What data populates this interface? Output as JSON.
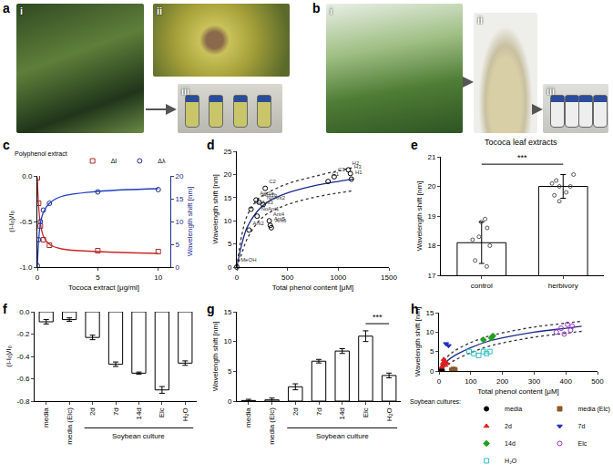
{
  "photos": [
    {
      "panel": "a",
      "labels": [
        "i",
        "ii",
        "iii"
      ]
    },
    {
      "panel": "b",
      "labels": [
        "i",
        "ii",
        "iii"
      ]
    }
  ],
  "chart_data": [
    {
      "panel": "c",
      "type": "scatter",
      "x_label": "Tococa extract [μg/ml]",
      "y_label": "(I-I₀)/I₀",
      "y2_label": "Wavelength shift [nm]",
      "legend": "top right",
      "legend_title": "Polyphenol extract",
      "xlim": [
        0,
        11
      ],
      "xticks": [
        0,
        5,
        10
      ],
      "ylim": [
        -1,
        0
      ],
      "yticks": [
        {
          "value": -1,
          "label": "-1.0"
        },
        {
          "value": -0.5,
          "label": "-0.5"
        },
        {
          "value": 0,
          "label": "0.0"
        }
      ],
      "y2lim": [
        0,
        20
      ],
      "y2ticks": [
        0,
        5,
        10,
        15,
        20
      ],
      "series": [
        {
          "name": "ΔI",
          "color": "#a52a2a",
          "marker": "square-open",
          "x": [
            0,
            0.1,
            0.25,
            0.5,
            1,
            5,
            10
          ],
          "values": [
            -0.02,
            -0.3,
            -0.55,
            -0.7,
            -0.76,
            -0.82,
            -0.83
          ]
        },
        {
          "type": "line",
          "color": "#c62828",
          "line_style": "solid",
          "x": [
            0,
            0.1,
            0.25,
            0.5,
            1,
            2,
            5,
            10
          ],
          "values": [
            -0.02,
            -0.32,
            -0.52,
            -0.66,
            -0.75,
            -0.8,
            -0.83,
            -0.85
          ]
        },
        {
          "name": "Δλ",
          "color": "#1a2a8a",
          "marker": "circle-open",
          "axis": "y2",
          "x": [
            0,
            0.1,
            0.25,
            0.5,
            1,
            5,
            10
          ],
          "values": [
            0.3,
            6,
            10,
            12.5,
            14,
            16.5,
            17
          ]
        },
        {
          "type": "line",
          "axis": "y2",
          "color": "#1f3fbf",
          "line_style": "solid",
          "x": [
            0,
            0.1,
            0.25,
            0.5,
            1,
            2,
            5,
            10
          ],
          "values": [
            0,
            5.5,
            9.5,
            12,
            14,
            15.5,
            16.6,
            17.2
          ]
        }
      ]
    },
    {
      "panel": "d",
      "type": "scatter",
      "x_label": "Total phenol content [μM]",
      "y_label": "Wavelength shift [nm]",
      "xlim": [
        0,
        1500
      ],
      "xticks": [
        0,
        500,
        1000,
        1500
      ],
      "ylim": [
        0,
        25
      ],
      "yticks": [
        0,
        5,
        10,
        15,
        20,
        25
      ],
      "series": [
        {
          "type": "line",
          "color": "#1a2a8a",
          "line_style": "solid",
          "x": [
            0,
            50,
            100,
            200,
            300,
            500,
            750,
            1000,
            1150
          ],
          "values": [
            0,
            5,
            8.5,
            12,
            14,
            16,
            17.5,
            18.5,
            19
          ]
        },
        {
          "type": "line",
          "color": "#333333",
          "line_style": "dot",
          "x": [
            0,
            50,
            100,
            200,
            300,
            500,
            750,
            1000,
            1150
          ],
          "values": [
            0,
            7,
            11,
            14.5,
            16,
            18,
            19.5,
            20.8,
            21.5
          ]
        },
        {
          "type": "line",
          "color": "#333333",
          "line_style": "dot",
          "x": [
            0,
            50,
            100,
            200,
            300,
            500,
            750,
            1000,
            1150
          ],
          "values": [
            0,
            3,
            6,
            9.5,
            11.5,
            13.5,
            15,
            16,
            16.5
          ]
        },
        {
          "color": "#000000",
          "marker": "circle-open",
          "x": [
            0,
            120,
            140,
            190,
            220,
            200,
            260,
            280,
            320,
            330,
            340,
            900,
            960,
            1100,
            1120,
            1130
          ],
          "values": [
            0,
            8,
            12.5,
            14.5,
            14,
            11,
            13.5,
            17,
            10,
            9,
            8.5,
            18.5,
            19.5,
            21,
            20.2,
            19
          ],
          "point_labels": [
            "MeOH",
            "Ant2",
            "NoAnt3",
            "Ant1a",
            "Ant1b",
            "NoAnt1",
            "NoAnt2",
            "C2",
            "Ant4",
            "Ant5",
            "Ant6",
            "C1",
            "C3",
            "H2",
            "H3",
            "H1"
          ]
        }
      ]
    },
    {
      "panel": "e",
      "type": "bar",
      "title": "Tococa leaf extracts",
      "y_label": "Wavelength shift [nm]",
      "categories": [
        "control",
        "herbivory"
      ],
      "values": [
        18.1,
        20.0
      ],
      "error": [
        0.7,
        0.4
      ],
      "points": [
        [
          17.3,
          17.5,
          18.0,
          18.2,
          18.3,
          18.6,
          18.8,
          18.9
        ],
        [
          19.5,
          19.7,
          19.8,
          20.0,
          20.0,
          20.1,
          20.2,
          20.4
        ]
      ],
      "color": "#ffffff",
      "ylim": [
        17,
        21
      ],
      "yticks": [
        17,
        18,
        19,
        20,
        21
      ],
      "annotations": [
        {
          "text": "***",
          "from": 0,
          "to": 1,
          "y": 20.75
        }
      ]
    },
    {
      "panel": "f",
      "type": "bar",
      "y_label": "(I-I₀)/I₀",
      "categories": [
        "media",
        "media (Elc)",
        "2d",
        "7d",
        "14d",
        "Elc",
        "H₂O"
      ],
      "values": [
        -0.09,
        -0.07,
        -0.23,
        -0.47,
        -0.55,
        -0.7,
        -0.46
      ],
      "error": [
        0.02,
        0.015,
        0.02,
        0.02,
        0.01,
        0.03,
        0.02
      ],
      "color": "#ffffff",
      "ylim": [
        -0.8,
        0
      ],
      "yticks": [
        {
          "value": -0.8,
          "label": "-0.8"
        },
        {
          "value": -0.6,
          "label": "-0.6"
        },
        {
          "value": -0.4,
          "label": "-0.4"
        },
        {
          "value": -0.2,
          "label": "-0.2"
        },
        {
          "value": 0,
          "label": "0.0"
        }
      ],
      "group_labels": [
        {
          "text": "Soybean culture",
          "from": 2,
          "to": 6
        }
      ]
    },
    {
      "panel": "g",
      "type": "bar",
      "y_label": "Wavelength shift [nm]",
      "categories": [
        "media",
        "media (Elc)",
        "2d",
        "7d",
        "14d",
        "Elc",
        "H₂O"
      ],
      "values": [
        0.1,
        0.2,
        2.4,
        6.7,
        8.4,
        10.9,
        4.3
      ],
      "error": [
        0.2,
        0.3,
        0.5,
        0.3,
        0.4,
        0.9,
        0.4
      ],
      "color": "#ffffff",
      "ylim": [
        0,
        15
      ],
      "yticks": [
        0,
        5,
        10,
        15
      ],
      "annotations": [
        {
          "text": "***",
          "from": 5,
          "to": 6,
          "y": 13
        }
      ],
      "group_labels": [
        {
          "text": "Soybean culture",
          "from": 2,
          "to": 6
        }
      ]
    },
    {
      "panel": "h",
      "type": "scatter",
      "x_label": "Total phenol content [μM]",
      "y_label": "Wavelength shift [nm]",
      "xlim": [
        0,
        500
      ],
      "xticks": [
        0,
        100,
        200,
        300,
        400,
        500
      ],
      "ylim": [
        0,
        15
      ],
      "yticks": [
        0,
        5,
        10,
        15
      ],
      "legend": "bottom left",
      "legend_title": "Soybean cultures:",
      "series": [
        {
          "type": "line",
          "color": "#1a2a8a",
          "line_style": "solid",
          "x": [
            0,
            25,
            50,
            100,
            150,
            200,
            300,
            400,
            450
          ],
          "values": [
            0,
            2.5,
            4,
            6,
            7.5,
            8.5,
            10,
            11,
            11.5
          ]
        },
        {
          "type": "line",
          "color": "#333333",
          "line_style": "dot",
          "x": [
            0,
            25,
            50,
            100,
            150,
            200,
            300,
            400,
            450
          ],
          "values": [
            0,
            3.5,
            5.2,
            7.3,
            8.8,
            9.8,
            11.3,
            12.3,
            12.8
          ]
        },
        {
          "type": "line",
          "color": "#333333",
          "line_style": "dot",
          "x": [
            0,
            25,
            50,
            100,
            150,
            200,
            300,
            400,
            450
          ],
          "values": [
            0,
            1.5,
            2.8,
            4.7,
            6.2,
            7.2,
            8.7,
            9.7,
            10.2
          ]
        },
        {
          "name": "media",
          "color": "#000000",
          "marker": "circle",
          "x": [
            5,
            8,
            10
          ],
          "values": [
            0,
            0.1,
            0.2
          ]
        },
        {
          "name": "media (Elc)",
          "color": "#8b5a2b",
          "marker": "square",
          "x": [
            40,
            45,
            50
          ],
          "values": [
            0.2,
            0.4,
            0.3
          ]
        },
        {
          "name": "2d",
          "color": "#e02020",
          "marker": "triangle-up",
          "x": [
            8,
            12,
            15,
            18,
            20,
            25
          ],
          "values": [
            1,
            2,
            3,
            2.5,
            1.5,
            2
          ]
        },
        {
          "name": "7d",
          "color": "#2030c0",
          "marker": "triangle-down",
          "x": [
            22,
            30
          ],
          "values": [
            7,
            6.5
          ]
        },
        {
          "name": "14d",
          "color": "#20a020",
          "marker": "diamond",
          "x": [
            140,
            165,
            170
          ],
          "values": [
            8,
            8.5,
            9
          ]
        },
        {
          "name": "Elc",
          "color": "#9b30c8",
          "marker": "circle-open",
          "x": [
            370,
            385,
            395,
            405,
            415,
            420
          ],
          "values": [
            10,
            11,
            9.5,
            12,
            10.5,
            11.5
          ]
        },
        {
          "name": "H₂O",
          "color": "#30c0c0",
          "marker": "square-open",
          "x": [
            95,
            110,
            125,
            140,
            150,
            160
          ],
          "values": [
            5,
            4.5,
            4,
            5,
            4.5,
            5
          ]
        }
      ]
    }
  ]
}
